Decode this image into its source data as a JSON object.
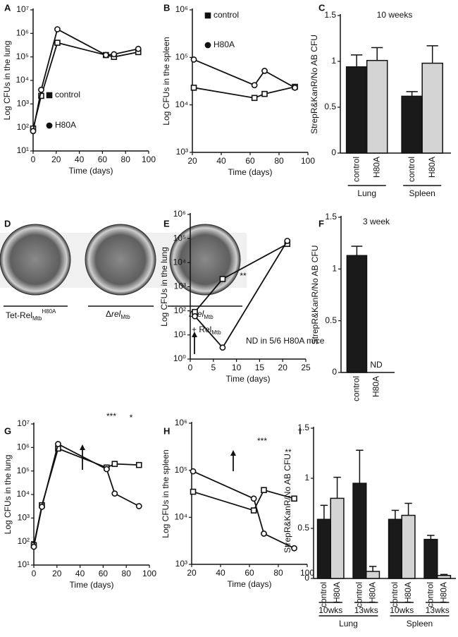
{
  "chart_data": [
    {
      "panel": "A",
      "type": "line",
      "ylabel": "Log CFUs in the lung",
      "xlabel": "Time (days)",
      "x": [
        0,
        7,
        21,
        63,
        70,
        91
      ],
      "xlim": [
        0,
        100
      ],
      "xticks": [
        0,
        20,
        40,
        60,
        80,
        100
      ],
      "ylim": [
        10,
        10000000
      ],
      "log_y": true,
      "yticks": [
        {
          "value": 10,
          "label": "10¹"
        },
        {
          "value": 100,
          "label": "10²"
        },
        {
          "value": 1000,
          "label": "10³"
        },
        {
          "value": 10000,
          "label": "10⁴"
        },
        {
          "value": 100000,
          "label": "10⁵"
        },
        {
          "value": 1000000,
          "label": "10⁶"
        },
        {
          "value": 10000000,
          "label": "10⁷"
        }
      ],
      "legend": "center",
      "series": [
        {
          "name": "control",
          "marker": "square",
          "values": [
            90,
            2200,
            400000,
            120000,
            100000,
            160000
          ]
        },
        {
          "name": "H80A",
          "marker": "circle",
          "values": [
            70,
            4000,
            1500000,
            120000,
            130000,
            220000
          ]
        }
      ]
    },
    {
      "panel": "B",
      "type": "line",
      "ylabel": "Log CFUs in the spleen",
      "xlabel": "Time (days)",
      "x": [
        21,
        63,
        70,
        91
      ],
      "xlim": [
        20,
        100
      ],
      "xticks": [
        20,
        40,
        60,
        80,
        100
      ],
      "ylim": [
        1000,
        1000000
      ],
      "log_y": true,
      "yticks": [
        {
          "value": 1000,
          "label": "10³"
        },
        {
          "value": 10000,
          "label": "10⁴"
        },
        {
          "value": 100000,
          "label": "10⁵"
        },
        {
          "value": 1000000,
          "label": "10⁶"
        }
      ],
      "legend": "upper left",
      "series": [
        {
          "name": "control",
          "marker": "square",
          "values": [
            23000,
            14000,
            17000,
            24000
          ]
        },
        {
          "name": "H80A",
          "marker": "circle",
          "values": [
            90000,
            26000,
            52000,
            23000
          ]
        }
      ]
    },
    {
      "panel": "C",
      "type": "bar",
      "title": "10 weeks",
      "ylabel": "StrepR&KanR/No AB CFU",
      "categories": [
        "control",
        "H80A",
        "control",
        "H80A"
      ],
      "values": [
        0.94,
        1.01,
        0.62,
        0.98
      ],
      "errors": [
        0.13,
        0.14,
        0.05,
        0.19
      ],
      "colors": [
        "#1a1a1a",
        "#d4d4d4",
        "#1a1a1a",
        "#d4d4d4"
      ],
      "ylim": [
        0,
        1.5
      ],
      "yticks": [
        0,
        0.5,
        1,
        1.5
      ],
      "groups": [
        "Lung",
        "Spleen"
      ]
    },
    {
      "panel": "E",
      "type": "line",
      "ylabel": "Log CFUs in the lung",
      "xlabel": "Time (days)",
      "x": [
        1,
        7,
        21
      ],
      "xlim": [
        0,
        25
      ],
      "xticks": [
        0,
        5,
        10,
        15,
        20,
        25
      ],
      "ylim": [
        1,
        1000000
      ],
      "log_y": true,
      "yticks": [
        {
          "value": 1,
          "label": "10⁰"
        },
        {
          "value": 10,
          "label": "10¹"
        },
        {
          "value": 100,
          "label": "10²"
        },
        {
          "value": 1000,
          "label": "10³"
        },
        {
          "value": 10000,
          "label": "10⁴"
        },
        {
          "value": 100000,
          "label": "10⁵"
        },
        {
          "value": 1000000,
          "label": "10⁶"
        }
      ],
      "annotations": [
        "**",
        "ND in 5/6 H80A mice"
      ],
      "series": [
        {
          "marker": "square",
          "values": [
            90,
            2100,
            60000
          ]
        },
        {
          "marker": "circle",
          "values": [
            60,
            3,
            80000
          ]
        }
      ]
    },
    {
      "panel": "F",
      "type": "bar",
      "title": "3 week",
      "ylabel": "StrepR&KanR/No AB CFU",
      "categories": [
        "control",
        "H80A"
      ],
      "values": [
        1.13,
        null
      ],
      "errors": [
        0.09,
        null
      ],
      "colors": [
        "#1a1a1a",
        "#d4d4d4"
      ],
      "ylim": [
        0,
        1.5
      ],
      "yticks": [
        0,
        0.5,
        1,
        1.5
      ],
      "annotations": [
        "ND"
      ]
    },
    {
      "panel": "G",
      "type": "line",
      "ylabel": "Log CFUs in the lung",
      "xlabel": "Time (days)",
      "x": [
        0,
        7,
        21,
        63,
        70,
        91
      ],
      "xlim": [
        0,
        100
      ],
      "xticks": [
        0,
        20,
        40,
        60,
        80,
        100
      ],
      "ylim": [
        10,
        10000000
      ],
      "log_y": true,
      "yticks": [
        {
          "value": 10,
          "label": "10¹"
        },
        {
          "value": 100,
          "label": "10²"
        },
        {
          "value": 1000,
          "label": "10³"
        },
        {
          "value": 10000,
          "label": "10⁴"
        },
        {
          "value": 100000,
          "label": "10⁵"
        },
        {
          "value": 1000000,
          "label": "10⁶"
        },
        {
          "value": 10000000,
          "label": "10⁷"
        }
      ],
      "annotations": [
        "***",
        "*"
      ],
      "series": [
        {
          "marker": "square",
          "values": [
            70,
            3500,
            900000,
            140000,
            200000,
            180000
          ]
        },
        {
          "marker": "circle",
          "values": [
            60,
            3000,
            1400000,
            120000,
            11000,
            3200
          ]
        }
      ]
    },
    {
      "panel": "H",
      "type": "line",
      "ylabel": "Log CFUs in the spleen",
      "xlabel": "Time (days)",
      "x": [
        21,
        63,
        70,
        91
      ],
      "xlim": [
        20,
        100
      ],
      "xticks": [
        20,
        40,
        60,
        80,
        100
      ],
      "ylim": [
        1000,
        1000000
      ],
      "log_y": true,
      "yticks": [
        {
          "value": 1000,
          "label": "10³"
        },
        {
          "value": 10000,
          "label": "10⁴"
        },
        {
          "value": 100000,
          "label": "10⁵"
        },
        {
          "value": 1000000,
          "label": "10⁶"
        }
      ],
      "annotations": [
        "***",
        "**"
      ],
      "series": [
        {
          "marker": "square",
          "values": [
            35000,
            14000,
            38000,
            25000
          ]
        },
        {
          "marker": "circle",
          "values": [
            95000,
            25000,
            4500,
            2200
          ]
        }
      ]
    },
    {
      "panel": "I",
      "type": "bar",
      "ylabel": "StrepR&KanR/No AB CFU",
      "categories": [
        "control",
        "H80A",
        "control",
        "H80A",
        "control",
        "H80A",
        "control",
        "H80A"
      ],
      "values": [
        0.59,
        0.8,
        0.95,
        0.07,
        0.59,
        0.63,
        0.39,
        0.03
      ],
      "errors": [
        0.14,
        0.21,
        0.33,
        0.05,
        0.09,
        0.12,
        0.04,
        0.01
      ],
      "colors": [
        "#1a1a1a",
        "#d4d4d4",
        "#1a1a1a",
        "#d4d4d4",
        "#1a1a1a",
        "#d4d4d4",
        "#1a1a1a",
        "#d4d4d4"
      ],
      "ylim": [
        0,
        1.5
      ],
      "yticks": [
        0,
        0.5,
        1,
        1.5
      ],
      "subgroups": [
        "10wks",
        "13wks",
        "10wks",
        "13wks"
      ],
      "groups": [
        "Lung",
        "Spleen"
      ]
    }
  ],
  "image_panel": {
    "panel": "D",
    "labels": [
      [
        "Tet-Rel",
        "Mtb",
        "H80A"
      ],
      [
        "Δ",
        "rel",
        "Mtb"
      ],
      [
        "Δ",
        "rel",
        "Mtb",
        "+ Rel",
        "Mtb"
      ]
    ]
  }
}
